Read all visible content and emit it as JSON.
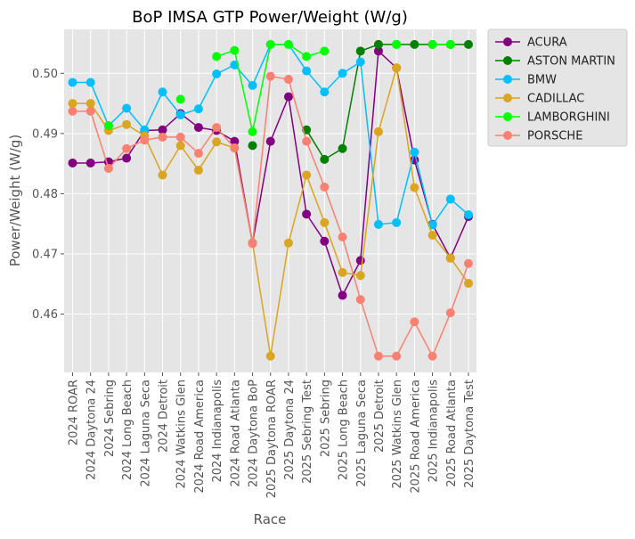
{
  "chart_data": {
    "type": "line",
    "title": "BoP IMSA GTP Power/Weight (W/g)",
    "xlabel": "Race",
    "ylabel": "Power/Weight (W/g)",
    "ylim": [
      0.4503,
      0.5073
    ],
    "yticks": [
      0.46,
      0.47,
      0.48,
      0.49,
      0.5
    ],
    "ytick_labels": [
      "0.46",
      "0.47",
      "0.48",
      "0.49",
      "0.50"
    ],
    "grid": true,
    "legend_placement": "outside-top-right",
    "categories": [
      "2024 ROAR",
      "2024 Daytona 24",
      "2024 Sebring",
      "2024 Long Beach",
      "2024 Laguna Seca",
      "2024 Detroit",
      "2024 Watkins Glen",
      "2024 Road America",
      "2024 Indianapolis",
      "2024 Road Atlanta",
      "2024 Daytona BoP",
      "2025 Daytona ROAR",
      "2025 Daytona 24",
      "2025 Sebring Test",
      "2025 Sebring",
      "2025 Long Beach",
      "2025 Laguna Seca",
      "2025 Detroit",
      "2025 Watkins Glen",
      "2025 Road America",
      "2025 Indianapolis",
      "2025 Road Atlanta",
      "2025 Daytona Test"
    ],
    "series": [
      {
        "name": "ACURA",
        "color": "#800080",
        "values": [
          0.4851,
          0.4851,
          0.4853,
          0.4859,
          0.4905,
          0.4906,
          0.4933,
          0.491,
          0.4905,
          0.4887,
          0.4718,
          0.4887,
          0.4961,
          0.4766,
          0.4721,
          0.4631,
          0.4689,
          0.5037,
          0.5009,
          0.4856,
          0.4749,
          0.4693,
          0.4762
        ]
      },
      {
        "name": "ASTON MARTIN",
        "color": "#008000",
        "values": [
          null,
          null,
          null,
          null,
          null,
          null,
          null,
          null,
          null,
          null,
          0.488,
          null,
          null,
          0.4906,
          0.4857,
          0.4875,
          0.5037,
          0.5048,
          0.5048,
          0.5048,
          0.5048,
          0.5048,
          0.5048
        ]
      },
      {
        "name": "BMW",
        "color": "#00BFFF",
        "values": [
          0.4985,
          0.4985,
          0.4913,
          0.4942,
          0.4906,
          0.4969,
          0.4931,
          0.4941,
          0.4999,
          0.5014,
          0.498,
          0.5048,
          0.5048,
          0.5004,
          0.4969,
          0.5,
          0.5019,
          0.4749,
          0.4752,
          0.4869,
          0.4748,
          0.4791,
          0.4765
        ]
      },
      {
        "name": "CADILLAC",
        "color": "#DAA520",
        "values": [
          0.495,
          0.495,
          0.4905,
          0.4915,
          0.4896,
          0.4831,
          0.488,
          0.4839,
          0.4886,
          0.4876,
          0.4718,
          0.453,
          0.4718,
          0.4831,
          0.4752,
          0.4669,
          0.4664,
          0.4903,
          0.5009,
          0.481,
          0.4731,
          0.4693,
          0.4651
        ]
      },
      {
        "name": "LAMBORGHINI",
        "color": "#00FF00",
        "values": [
          null,
          null,
          0.4913,
          null,
          null,
          null,
          0.4957,
          null,
          0.5028,
          0.5038,
          0.4903,
          0.5048,
          0.5048,
          0.5028,
          0.5037,
          null,
          null,
          null,
          0.5048,
          null,
          0.5048,
          0.5048,
          null
        ]
      },
      {
        "name": "PORSCHE",
        "color": "#FA8072",
        "values": [
          0.4937,
          0.4937,
          0.4842,
          0.4875,
          0.4889,
          0.4894,
          0.4894,
          0.4867,
          0.491,
          0.4876,
          0.4717,
          0.4995,
          0.499,
          0.4887,
          0.4811,
          0.4728,
          0.4624,
          0.453,
          0.453,
          0.4587,
          0.453,
          0.4602,
          0.4684
        ]
      }
    ]
  }
}
